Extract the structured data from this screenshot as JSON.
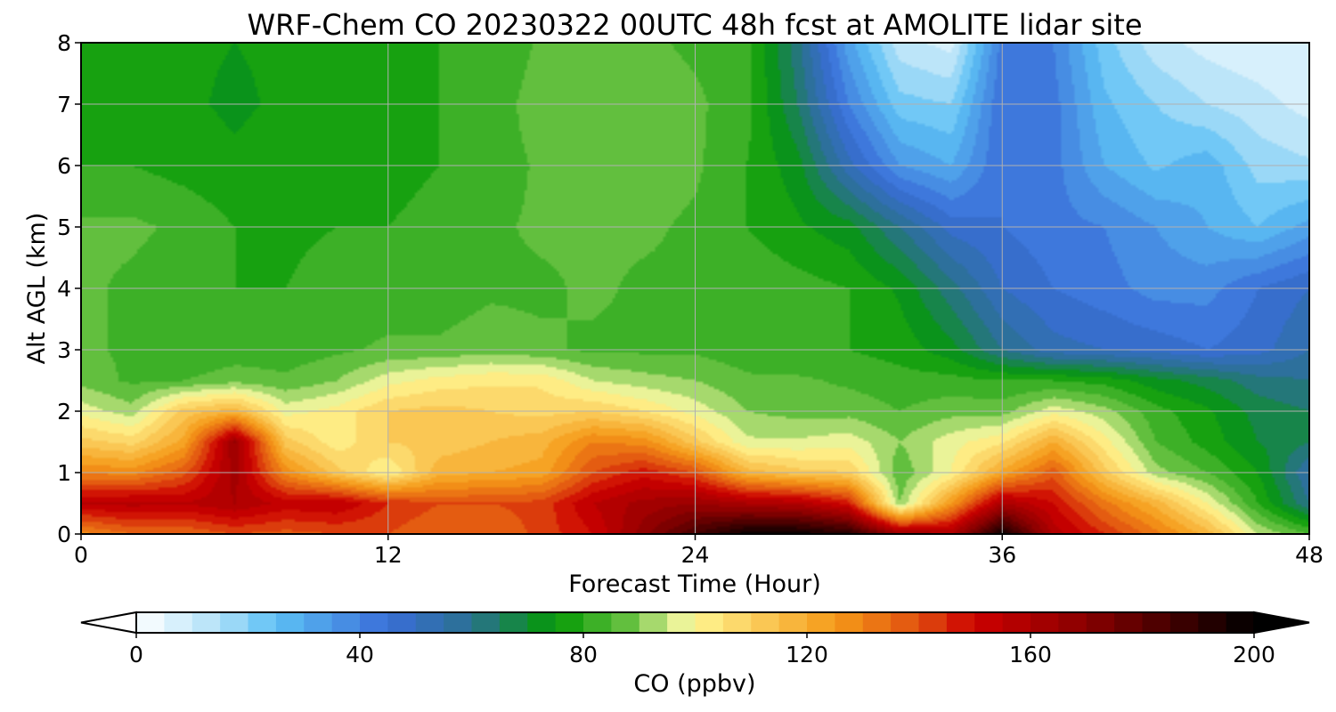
{
  "chart_data": {
    "type": "heatmap",
    "title": "WRF-Chem CO  20230322 00UTC 48h fcst at AMOLITE lidar site",
    "xlabel": "Forecast Time (Hour)",
    "ylabel": "Alt AGL (km)",
    "xlim": [
      0,
      48
    ],
    "ylim": [
      0,
      8
    ],
    "x_ticks": [
      0,
      12,
      24,
      36,
      48
    ],
    "y_ticks": [
      0,
      1,
      2,
      3,
      4,
      5,
      6,
      7,
      8
    ],
    "grid": true,
    "colorbar": {
      "label": "CO  (ppbv)",
      "range": [
        0,
        200
      ],
      "ticks": [
        0,
        40,
        80,
        120,
        160,
        200
      ],
      "extend": "both",
      "orientation": "horizontal",
      "stops": [
        {
          "value": 0,
          "color": "#ffffff"
        },
        {
          "value": 15,
          "color": "#aee0f8"
        },
        {
          "value": 25,
          "color": "#5cc0f5"
        },
        {
          "value": 45,
          "color": "#3a6ed8"
        },
        {
          "value": 60,
          "color": "#2a7090"
        },
        {
          "value": 75,
          "color": "#049a04"
        },
        {
          "value": 88,
          "color": "#66c040"
        },
        {
          "value": 97,
          "color": "#e6f29a"
        },
        {
          "value": 100,
          "color": "#fff590"
        },
        {
          "value": 110,
          "color": "#fbd060"
        },
        {
          "value": 125,
          "color": "#f59a18"
        },
        {
          "value": 140,
          "color": "#e05010"
        },
        {
          "value": 150,
          "color": "#cc0000"
        },
        {
          "value": 170,
          "color": "#880000"
        },
        {
          "value": 200,
          "color": "#000000"
        }
      ]
    },
    "grid_x_hours": [
      0,
      2,
      4,
      6,
      8,
      10,
      12,
      14,
      16,
      18,
      20,
      22,
      24,
      26,
      28,
      30,
      32,
      34,
      36,
      38,
      40,
      42,
      44,
      46,
      48
    ],
    "grid_z_km": [
      0,
      0.5,
      1,
      1.5,
      2,
      2.5,
      3,
      4,
      5,
      6,
      7,
      8
    ],
    "z_values_ppbv": [
      [
        128,
        135,
        135,
        140,
        138,
        140,
        140,
        135,
        135,
        142,
        150,
        168,
        185,
        198,
        198,
        192,
        165,
        160,
        198,
        158,
        145,
        132,
        118,
        95,
        85
      ],
      [
        155,
        157,
        155,
        160,
        153,
        155,
        145,
        140,
        140,
        142,
        155,
        162,
        165,
        160,
        158,
        148,
        90,
        125,
        160,
        150,
        132,
        118,
        100,
        80,
        60
      ],
      [
        130,
        128,
        138,
        162,
        128,
        112,
        100,
        118,
        120,
        122,
        140,
        148,
        140,
        118,
        112,
        110,
        86,
        100,
        122,
        138,
        112,
        92,
        85,
        75,
        55
      ],
      [
        112,
        108,
        122,
        165,
        112,
        102,
        110,
        112,
        115,
        118,
        130,
        128,
        112,
        96,
        96,
        98,
        90,
        98,
        104,
        120,
        102,
        85,
        78,
        70,
        65
      ],
      [
        98,
        92,
        112,
        118,
        98,
        102,
        110,
        112,
        110,
        108,
        110,
        105,
        98,
        90,
        88,
        88,
        85,
        88,
        88,
        98,
        92,
        82,
        76,
        68,
        65
      ],
      [
        88,
        84,
        85,
        88,
        86,
        90,
        98,
        102,
        104,
        104,
        95,
        92,
        90,
        86,
        86,
        84,
        82,
        82,
        80,
        80,
        78,
        72,
        68,
        62,
        60
      ],
      [
        86,
        84,
        80,
        82,
        82,
        84,
        86,
        86,
        88,
        86,
        84,
        84,
        84,
        82,
        80,
        80,
        78,
        72,
        60,
        52,
        50,
        48,
        45,
        48,
        55
      ],
      [
        86,
        84,
        82,
        80,
        80,
        82,
        82,
        82,
        84,
        84,
        86,
        84,
        84,
        84,
        82,
        80,
        74,
        62,
        50,
        45,
        42,
        38,
        38,
        45,
        50
      ],
      [
        86,
        86,
        84,
        80,
        79,
        80,
        80,
        82,
        84,
        86,
        86,
        86,
        84,
        80,
        76,
        72,
        60,
        48,
        45,
        42,
        40,
        35,
        30,
        25,
        32
      ],
      [
        80,
        80,
        78,
        76,
        78,
        78,
        78,
        80,
        82,
        86,
        86,
        88,
        86,
        80,
        72,
        52,
        35,
        30,
        45,
        42,
        30,
        24,
        28,
        18,
        16
      ],
      [
        80,
        78,
        76,
        74,
        76,
        76,
        78,
        80,
        82,
        88,
        86,
        88,
        86,
        82,
        65,
        40,
        22,
        20,
        45,
        42,
        26,
        20,
        15,
        12,
        8
      ],
      [
        79,
        78,
        76,
        75,
        76,
        77,
        78,
        80,
        80,
        86,
        86,
        86,
        84,
        82,
        62,
        32,
        12,
        8,
        42,
        40,
        22,
        12,
        8,
        6,
        5
      ]
    ]
  }
}
